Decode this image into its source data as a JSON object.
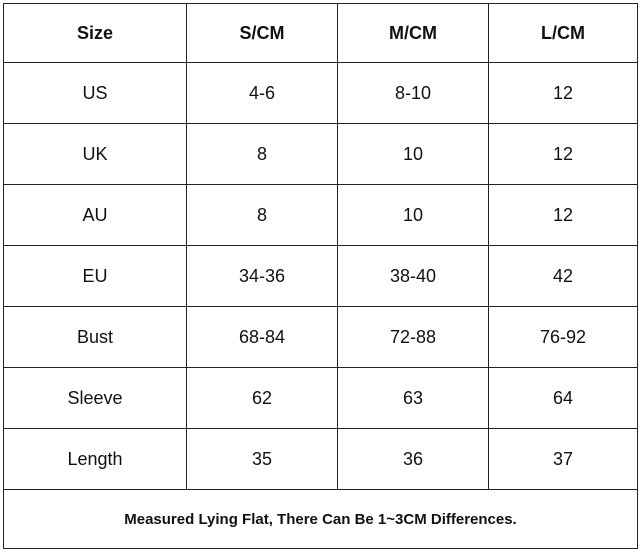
{
  "table": {
    "header": [
      "Size",
      "S/CM",
      "M/CM",
      "L/CM"
    ],
    "rows": [
      [
        "US",
        "4-6",
        "8-10",
        "12"
      ],
      [
        "UK",
        "8",
        "10",
        "12"
      ],
      [
        "AU",
        "8",
        "10",
        "12"
      ],
      [
        "EU",
        "34-36",
        "38-40",
        "42"
      ],
      [
        "Bust",
        "68-84",
        "72-88",
        "76-92"
      ],
      [
        "Sleeve",
        "62",
        "63",
        "64"
      ],
      [
        "Length",
        "35",
        "36",
        "37"
      ]
    ],
    "footer": "Measured Lying Flat, There Can Be 1~3CM Differences."
  }
}
